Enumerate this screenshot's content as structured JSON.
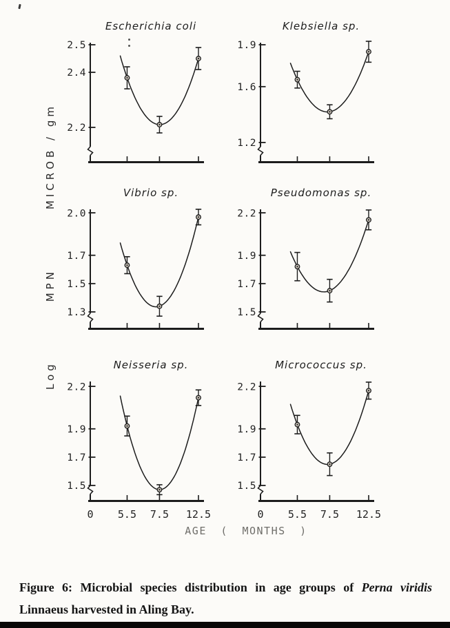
{
  "figure": {
    "y_axis_label": "Log MPN MICROB / gm",
    "y_axis_parts": [
      "Log",
      "MPN",
      "MICROB / gm"
    ],
    "x_axis_label": "AGE ( MONTHS )",
    "caption": {
      "part1": "Figure 6: Microbial species distribution in age groups of",
      "species": "Perna viridis",
      "line2": "Linnaeus harvested in Aling Bay."
    }
  },
  "chart_data": [
    {
      "type": "line",
      "title": "Escherichia coli",
      "x": [
        5.5,
        7.5,
        12.5
      ],
      "y": [
        2.38,
        2.21,
        2.45
      ],
      "yerr": [
        0.04,
        0.03,
        0.04
      ],
      "yticks": [
        2.5,
        2.4,
        2.2
      ],
      "ylim": [
        2.13,
        2.5
      ],
      "x_tick_labels": [
        "0",
        "5.5",
        "7.5",
        "12.5"
      ],
      "xlim": [
        0,
        13
      ],
      "xlabel": "AGE ( MONTHS )",
      "ylabel": "Log MPN MICROB / gm",
      "curve_fit": "quadratic",
      "marker": "open-circle",
      "error_bars": true,
      "axis_break": true,
      "show_x_tick_labels": false,
      "grid": false
    },
    {
      "type": "line",
      "title": "Klebsiella sp.",
      "x": [
        5.5,
        7.5,
        12.5
      ],
      "y": [
        1.65,
        1.42,
        1.85
      ],
      "yerr": [
        0.06,
        0.05,
        0.075
      ],
      "yticks": [
        1.9,
        1.6,
        1.2
      ],
      "ylim": [
        1.17,
        1.9
      ],
      "x_tick_labels": [
        "0",
        "5.5",
        "7.5",
        "12.5"
      ],
      "xlim": [
        0,
        13
      ],
      "xlabel": "AGE ( MONTHS )",
      "ylabel": "Log MPN MICROB / gm",
      "curve_fit": "quadratic",
      "marker": "open-circle",
      "error_bars": true,
      "axis_break": true,
      "show_x_tick_labels": false,
      "grid": false
    },
    {
      "type": "line",
      "title": "Vibrio sp.",
      "x": [
        5.5,
        7.5,
        12.5
      ],
      "y": [
        1.63,
        1.34,
        1.97
      ],
      "yerr": [
        0.06,
        0.07,
        0.055
      ],
      "yticks": [
        2.0,
        1.7,
        1.5,
        1.3
      ],
      "ylim": [
        1.29,
        2.01
      ],
      "x_tick_labels": [
        "0",
        "5.5",
        "7.5",
        "12.5"
      ],
      "xlim": [
        0,
        13
      ],
      "xlabel": "AGE ( MONTHS )",
      "ylabel": "Log MPN MICROB / gm",
      "curve_fit": "quadratic",
      "marker": "open-circle",
      "error_bars": true,
      "axis_break": true,
      "show_x_tick_labels": false,
      "grid": false
    },
    {
      "type": "line",
      "title": "Pseudomonas sp.",
      "x": [
        5.5,
        7.5,
        12.5
      ],
      "y": [
        1.82,
        1.65,
        2.15
      ],
      "yerr": [
        0.1,
        0.08,
        0.07
      ],
      "yticks": [
        2.2,
        1.9,
        1.7,
        1.5
      ],
      "ylim": [
        1.49,
        2.21
      ],
      "x_tick_labels": [
        "0",
        "5.5",
        "7.5",
        "12.5"
      ],
      "xlim": [
        0,
        13
      ],
      "xlabel": "AGE ( MONTHS )",
      "ylabel": "Log MPN MICROB / gm",
      "curve_fit": "quadratic",
      "marker": "open-circle",
      "error_bars": true,
      "axis_break": true,
      "show_x_tick_labels": false,
      "grid": false
    },
    {
      "type": "line",
      "title": "Neisseria sp.",
      "x": [
        5.5,
        7.5,
        12.5
      ],
      "y": [
        1.92,
        1.47,
        2.12
      ],
      "yerr": [
        0.07,
        0.035,
        0.055
      ],
      "yticks": [
        2.2,
        1.9,
        1.7,
        1.5
      ],
      "ylim": [
        1.5,
        2.22
      ],
      "x_tick_labels": [
        "0",
        "5.5",
        "7.5",
        "12.5"
      ],
      "xlim": [
        0,
        13
      ],
      "xlabel": "AGE ( MONTHS )",
      "ylabel": "Log MPN MICROB / gm",
      "curve_fit": "quadratic",
      "marker": "open-circle",
      "error_bars": true,
      "axis_break": true,
      "show_x_tick_labels": true,
      "grid": false
    },
    {
      "type": "line",
      "title": "Micrococcus sp.",
      "x": [
        5.5,
        7.5,
        12.5
      ],
      "y": [
        1.93,
        1.65,
        2.17
      ],
      "yerr": [
        0.065,
        0.08,
        0.06
      ],
      "yticks": [
        2.2,
        1.9,
        1.7,
        1.5
      ],
      "ylim": [
        1.5,
        2.22
      ],
      "x_tick_labels": [
        "0",
        "5.5",
        "7.5",
        "12.5"
      ],
      "xlim": [
        0,
        13
      ],
      "xlabel": "AGE ( MONTHS )",
      "ylabel": "Log MPN MICROB / gm",
      "curve_fit": "quadratic",
      "marker": "open-circle",
      "error_bars": true,
      "axis_break": true,
      "show_x_tick_labels": true,
      "grid": false
    }
  ]
}
